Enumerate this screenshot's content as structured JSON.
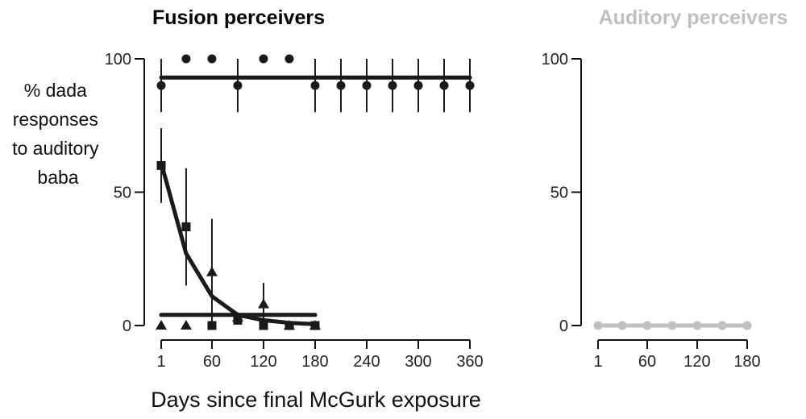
{
  "chart_data": [
    {
      "type": "line",
      "title": "Fusion perceivers",
      "title_color": "#000000",
      "ylabel": "% dada responses to auditory baba",
      "ylabel_lines": [
        "% dada",
        "responses",
        "to auditory",
        "baba"
      ],
      "xlabel": "Days since final McGurk exposure",
      "xlim": [
        1,
        360
      ],
      "ylim": [
        0,
        100
      ],
      "xticks": [
        1,
        60,
        120,
        180,
        240,
        300,
        360
      ],
      "yticks": [
        0,
        50,
        100
      ],
      "color": "#1a1a1a",
      "series": [
        {
          "marker": "circle",
          "points": [
            {
              "x": 1,
              "y": 90,
              "err": 10
            },
            {
              "x": 30,
              "y": 100
            },
            {
              "x": 60,
              "y": 100
            },
            {
              "x": 90,
              "y": 90,
              "err": 10
            },
            {
              "x": 120,
              "y": 100
            },
            {
              "x": 150,
              "y": 100
            },
            {
              "x": 180,
              "y": 90,
              "err": 10
            },
            {
              "x": 210,
              "y": 90,
              "err": 10
            },
            {
              "x": 240,
              "y": 90,
              "err": 10
            },
            {
              "x": 270,
              "y": 90,
              "err": 10
            },
            {
              "x": 300,
              "y": 90,
              "err": 10
            },
            {
              "x": 330,
              "y": 90,
              "err": 10
            },
            {
              "x": 360,
              "y": 90,
              "err": 10
            }
          ],
          "fit": [
            [
              1,
              93
            ],
            [
              360,
              93
            ]
          ]
        },
        {
          "marker": "square",
          "points": [
            {
              "x": 1,
              "y": 60,
              "err": 14
            },
            {
              "x": 30,
              "y": 37,
              "err": 22
            },
            {
              "x": 60,
              "y": 0
            },
            {
              "x": 90,
              "y": 2
            },
            {
              "x": 120,
              "y": 0
            },
            {
              "x": 150,
              "y": 0
            },
            {
              "x": 180,
              "y": 0
            }
          ],
          "fit": [
            [
              1,
              61
            ],
            [
              30,
              27
            ],
            [
              60,
              11
            ],
            [
              90,
              4
            ],
            [
              120,
              2
            ],
            [
              150,
              1
            ],
            [
              180,
              0.5
            ]
          ]
        },
        {
          "marker": "triangle",
          "points": [
            {
              "x": 1,
              "y": 0
            },
            {
              "x": 30,
              "y": 0
            },
            {
              "x": 60,
              "y": 20,
              "err": 20
            },
            {
              "x": 90,
              "y": 3
            },
            {
              "x": 120,
              "y": 8,
              "err": 8
            },
            {
              "x": 150,
              "y": 0
            },
            {
              "x": 180,
              "y": 0
            }
          ],
          "fit": [
            [
              1,
              4
            ],
            [
              180,
              4
            ]
          ]
        }
      ]
    },
    {
      "type": "line",
      "title": "Auditory perceivers",
      "title_color": "#bfbfbf",
      "xlabel": "",
      "xlim": [
        1,
        180
      ],
      "ylim": [
        0,
        100
      ],
      "xticks": [
        1,
        60,
        120,
        180
      ],
      "yticks": [
        0,
        50,
        100
      ],
      "color": "#c0c0c0",
      "series": [
        {
          "marker": "circle",
          "points": [
            {
              "x": 1,
              "y": 0
            },
            {
              "x": 30,
              "y": 0
            },
            {
              "x": 60,
              "y": 0
            },
            {
              "x": 90,
              "y": 0
            },
            {
              "x": 120,
              "y": 0
            },
            {
              "x": 150,
              "y": 0
            },
            {
              "x": 180,
              "y": 0
            }
          ],
          "fit": [
            [
              1,
              0
            ],
            [
              180,
              0
            ]
          ]
        }
      ]
    }
  ]
}
